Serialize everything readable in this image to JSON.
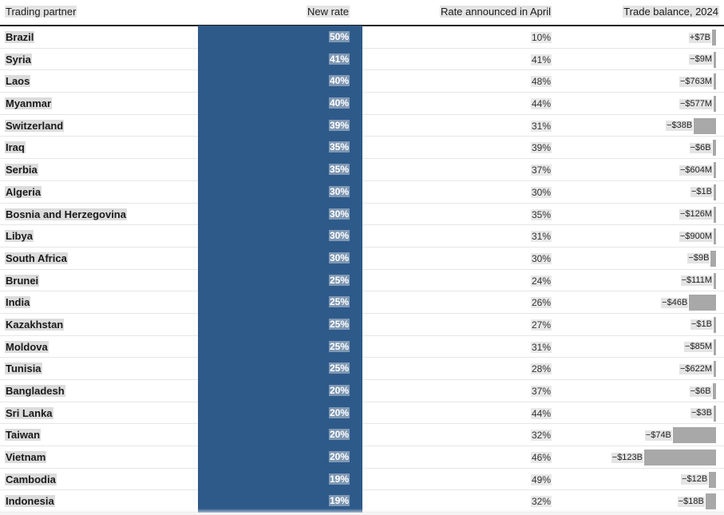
{
  "header": {
    "col_partner": "Trading partner",
    "col_new_rate": "New rate",
    "col_april": "Rate announced in April",
    "col_balance": "Trade balance, 2024"
  },
  "chart_data": {
    "type": "table",
    "columns": [
      "Trading partner",
      "New rate",
      "Rate announced in April",
      "Trade balance, 2024"
    ],
    "rows": [
      {
        "partner": "Brazil",
        "new_rate": "50%",
        "april_rate": "10%",
        "balance": "+$7B",
        "balance_value": 7
      },
      {
        "partner": "Syria",
        "new_rate": "41%",
        "april_rate": "41%",
        "balance": "−$9M",
        "balance_value": -0.009
      },
      {
        "partner": "Laos",
        "new_rate": "40%",
        "april_rate": "48%",
        "balance": "−$763M",
        "balance_value": -0.763
      },
      {
        "partner": "Myanmar",
        "new_rate": "40%",
        "april_rate": "44%",
        "balance": "−$577M",
        "balance_value": -0.577
      },
      {
        "partner": "Switzerland",
        "new_rate": "39%",
        "april_rate": "31%",
        "balance": "−$38B",
        "balance_value": -38
      },
      {
        "partner": "Iraq",
        "new_rate": "35%",
        "april_rate": "39%",
        "balance": "−$6B",
        "balance_value": -6
      },
      {
        "partner": "Serbia",
        "new_rate": "35%",
        "april_rate": "37%",
        "balance": "−$604M",
        "balance_value": -0.604
      },
      {
        "partner": "Algeria",
        "new_rate": "30%",
        "april_rate": "30%",
        "balance": "−$1B",
        "balance_value": -1
      },
      {
        "partner": "Bosnia and Herzegovina",
        "new_rate": "30%",
        "april_rate": "35%",
        "balance": "−$126M",
        "balance_value": -0.126
      },
      {
        "partner": "Libya",
        "new_rate": "30%",
        "april_rate": "31%",
        "balance": "−$900M",
        "balance_value": -0.9
      },
      {
        "partner": "South Africa",
        "new_rate": "30%",
        "april_rate": "30%",
        "balance": "−$9B",
        "balance_value": -9
      },
      {
        "partner": "Brunei",
        "new_rate": "25%",
        "april_rate": "24%",
        "balance": "−$111M",
        "balance_value": -0.111
      },
      {
        "partner": "India",
        "new_rate": "25%",
        "april_rate": "26%",
        "balance": "−$46B",
        "balance_value": -46
      },
      {
        "partner": "Kazakhstan",
        "new_rate": "25%",
        "april_rate": "27%",
        "balance": "−$1B",
        "balance_value": -1
      },
      {
        "partner": "Moldova",
        "new_rate": "25%",
        "april_rate": "31%",
        "balance": "−$85M",
        "balance_value": -0.085
      },
      {
        "partner": "Tunisia",
        "new_rate": "25%",
        "april_rate": "28%",
        "balance": "−$622M",
        "balance_value": -0.622
      },
      {
        "partner": "Bangladesh",
        "new_rate": "20%",
        "april_rate": "37%",
        "balance": "−$6B",
        "balance_value": -6
      },
      {
        "partner": "Sri Lanka",
        "new_rate": "20%",
        "april_rate": "44%",
        "balance": "−$3B",
        "balance_value": -3
      },
      {
        "partner": "Taiwan",
        "new_rate": "20%",
        "april_rate": "32%",
        "balance": "−$74B",
        "balance_value": -74
      },
      {
        "partner": "Vietnam",
        "new_rate": "20%",
        "april_rate": "46%",
        "balance": "−$123B",
        "balance_value": -123
      },
      {
        "partner": "Cambodia",
        "new_rate": "19%",
        "april_rate": "49%",
        "balance": "−$12B",
        "balance_value": -12
      },
      {
        "partner": "Indonesia",
        "new_rate": "19%",
        "april_rate": "32%",
        "balance": "−$18B",
        "balance_value": -18
      }
    ],
    "colors": {
      "new_rate_fill": "#2e5a8a",
      "balance_bar": "#a8a8a8"
    }
  }
}
